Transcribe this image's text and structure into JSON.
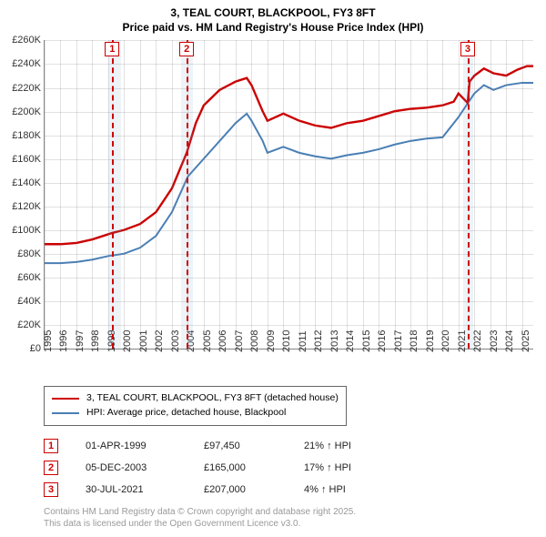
{
  "title_line1": "3, TEAL COURT, BLACKPOOL, FY3 8FT",
  "title_line2": "Price paid vs. HM Land Registry's House Price Index (HPI)",
  "chart": {
    "type": "line",
    "background_color": "#ffffff",
    "grid_color": "rgba(120,120,120,0.22)",
    "ylim": [
      0,
      260000
    ],
    "ytick_step": 20000,
    "yticks": [
      "£0",
      "£20K",
      "£40K",
      "£60K",
      "£80K",
      "£100K",
      "£120K",
      "£140K",
      "£160K",
      "£180K",
      "£200K",
      "£220K",
      "£240K",
      "£260K"
    ],
    "xlim": [
      1995,
      2025.7
    ],
    "xticks": [
      1995,
      1996,
      1997,
      1998,
      1999,
      2000,
      2001,
      2002,
      2003,
      2004,
      2005,
      2006,
      2007,
      2008,
      2009,
      2010,
      2011,
      2012,
      2013,
      2014,
      2015,
      2016,
      2017,
      2018,
      2019,
      2020,
      2021,
      2022,
      2023,
      2024,
      2025
    ],
    "series": [
      {
        "name": "3, TEAL COURT, BLACKPOOL, FY3 8FT (detached house)",
        "color": "#cc0000",
        "width": 2.4,
        "points": [
          [
            1995,
            88000
          ],
          [
            1996,
            88000
          ],
          [
            1997,
            89000
          ],
          [
            1998,
            92000
          ],
          [
            1999.25,
            97450
          ],
          [
            2000,
            100000
          ],
          [
            2001,
            105000
          ],
          [
            2002,
            115000
          ],
          [
            2003,
            135000
          ],
          [
            2003.93,
            165000
          ],
          [
            2004.5,
            190000
          ],
          [
            2005,
            205000
          ],
          [
            2006,
            218000
          ],
          [
            2007,
            225000
          ],
          [
            2007.7,
            228000
          ],
          [
            2008,
            222000
          ],
          [
            2008.7,
            200000
          ],
          [
            2009,
            192000
          ],
          [
            2010,
            198000
          ],
          [
            2011,
            192000
          ],
          [
            2012,
            188000
          ],
          [
            2013,
            186000
          ],
          [
            2014,
            190000
          ],
          [
            2015,
            192000
          ],
          [
            2016,
            196000
          ],
          [
            2017,
            200000
          ],
          [
            2018,
            202000
          ],
          [
            2019,
            203000
          ],
          [
            2020,
            205000
          ],
          [
            2020.7,
            208000
          ],
          [
            2021,
            215000
          ],
          [
            2021.58,
            207000
          ],
          [
            2021.7,
            225000
          ],
          [
            2022,
            230000
          ],
          [
            2022.6,
            236000
          ],
          [
            2023.2,
            232000
          ],
          [
            2024,
            230000
          ],
          [
            2024.7,
            235000
          ],
          [
            2025.3,
            238000
          ],
          [
            2025.7,
            238000
          ]
        ]
      },
      {
        "name": "HPI: Average price, detached house, Blackpool",
        "color": "#4a7fb5",
        "width": 2,
        "points": [
          [
            1995,
            72000
          ],
          [
            1996,
            72000
          ],
          [
            1997,
            73000
          ],
          [
            1998,
            75000
          ],
          [
            1999,
            78000
          ],
          [
            2000,
            80000
          ],
          [
            2001,
            85000
          ],
          [
            2002,
            95000
          ],
          [
            2003,
            115000
          ],
          [
            2004,
            145000
          ],
          [
            2005,
            160000
          ],
          [
            2006,
            175000
          ],
          [
            2007,
            190000
          ],
          [
            2007.7,
            198000
          ],
          [
            2008,
            192000
          ],
          [
            2008.7,
            175000
          ],
          [
            2009,
            165000
          ],
          [
            2010,
            170000
          ],
          [
            2011,
            165000
          ],
          [
            2012,
            162000
          ],
          [
            2013,
            160000
          ],
          [
            2014,
            163000
          ],
          [
            2015,
            165000
          ],
          [
            2016,
            168000
          ],
          [
            2017,
            172000
          ],
          [
            2018,
            175000
          ],
          [
            2019,
            177000
          ],
          [
            2020,
            178000
          ],
          [
            2021,
            195000
          ],
          [
            2022,
            215000
          ],
          [
            2022.6,
            222000
          ],
          [
            2023.2,
            218000
          ],
          [
            2024,
            222000
          ],
          [
            2025,
            224000
          ],
          [
            2025.7,
            224000
          ]
        ]
      }
    ],
    "annotations": [
      {
        "idx": "1",
        "x": 1999.25,
        "band_from": 1999.0,
        "band_to": 1999.8
      },
      {
        "idx": "2",
        "x": 2003.93,
        "band_from": 2003.6,
        "band_to": 2004.3
      },
      {
        "idx": "3",
        "x": 2021.58,
        "band_from": 2021.3,
        "band_to": 2021.9
      }
    ],
    "annot_box_color": "#cc0000",
    "annot_band_color": "rgba(120,160,200,0.13)"
  },
  "legend": {
    "items": [
      {
        "color": "#cc0000",
        "label": "3, TEAL COURT, BLACKPOOL, FY3 8FT (detached house)"
      },
      {
        "color": "#4a7fb5",
        "label": "HPI: Average price, detached house, Blackpool"
      }
    ]
  },
  "sales": [
    {
      "idx": "1",
      "date": "01-APR-1999",
      "price": "£97,450",
      "hpi": "21% ↑ HPI"
    },
    {
      "idx": "2",
      "date": "05-DEC-2003",
      "price": "£165,000",
      "hpi": "17% ↑ HPI"
    },
    {
      "idx": "3",
      "date": "30-JUL-2021",
      "price": "£207,000",
      "hpi": "4% ↑ HPI"
    }
  ],
  "attribution_line1": "Contains HM Land Registry data © Crown copyright and database right 2025.",
  "attribution_line2": "This data is licensed under the Open Government Licence v3.0."
}
